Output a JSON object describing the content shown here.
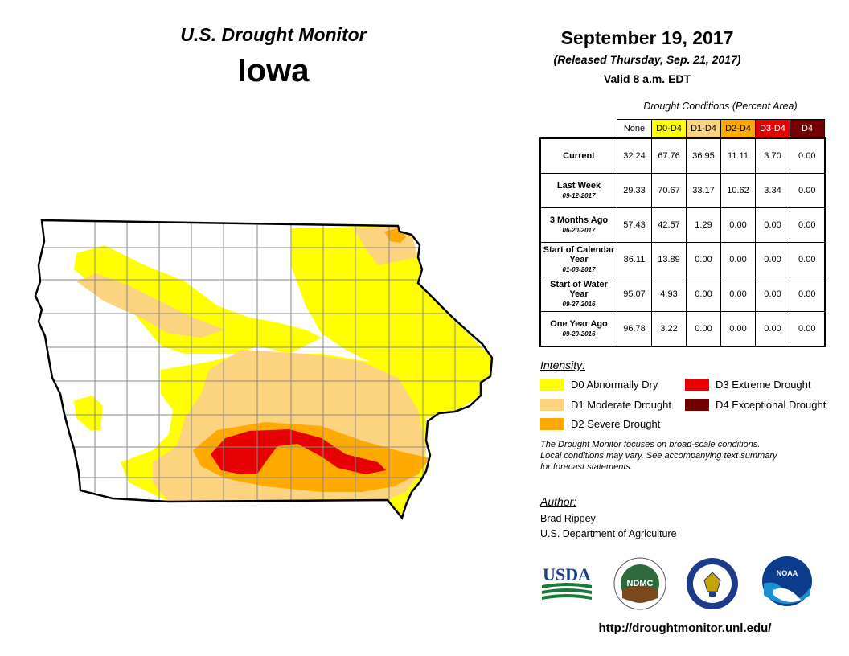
{
  "header": {
    "title": "U.S. Drought Monitor",
    "state": "Iowa",
    "date": "September 19, 2017",
    "released": "(Released Thursday, Sep. 21, 2017)",
    "valid": "Valid 8 a.m. EDT"
  },
  "table": {
    "caption": "Drought Conditions (Percent Area)",
    "columns": [
      {
        "label": "None",
        "color": "#ffffff"
      },
      {
        "label": "D0-D4",
        "color": "#ffff00"
      },
      {
        "label": "D1-D4",
        "color": "#fcd37f"
      },
      {
        "label": "D2-D4",
        "color": "#ffaa00"
      },
      {
        "label": "D3-D4",
        "color": "#e60000"
      },
      {
        "label": "D4",
        "color": "#730000"
      }
    ],
    "rows": [
      {
        "label": "Current",
        "sublabel": "",
        "values": [
          "32.24",
          "67.76",
          "36.95",
          "11.11",
          "3.70",
          "0.00"
        ]
      },
      {
        "label": "Last Week",
        "sublabel": "09-12-2017",
        "values": [
          "29.33",
          "70.67",
          "33.17",
          "10.62",
          "3.34",
          "0.00"
        ]
      },
      {
        "label": "3 Months Ago",
        "sublabel": "06-20-2017",
        "values": [
          "57.43",
          "42.57",
          "1.29",
          "0.00",
          "0.00",
          "0.00"
        ]
      },
      {
        "label": "Start of Calendar Year",
        "sublabel": "01-03-2017",
        "values": [
          "86.11",
          "13.89",
          "0.00",
          "0.00",
          "0.00",
          "0.00"
        ]
      },
      {
        "label": "Start of Water Year",
        "sublabel": "09-27-2016",
        "values": [
          "95.07",
          "4.93",
          "0.00",
          "0.00",
          "0.00",
          "0.00"
        ]
      },
      {
        "label": "One Year Ago",
        "sublabel": "09-20-2016",
        "values": [
          "96.78",
          "3.22",
          "0.00",
          "0.00",
          "0.00",
          "0.00"
        ]
      }
    ]
  },
  "legend": {
    "title": "Intensity:",
    "items": [
      {
        "label": "D0 Abnormally Dry",
        "color": "#ffff00"
      },
      {
        "label": "D1 Moderate Drought",
        "color": "#fcd37f"
      },
      {
        "label": "D2 Severe Drought",
        "color": "#ffaa00"
      },
      {
        "label": "D3 Extreme Drought",
        "color": "#e60000"
      },
      {
        "label": "D4 Exceptional Drought",
        "color": "#730000"
      }
    ]
  },
  "note": {
    "line1": "The Drought Monitor focuses on broad-scale conditions.",
    "line2": "Local conditions may vary. See accompanying text summary",
    "line3": "for forecast statements."
  },
  "author": {
    "label": "Author:",
    "name": "Brad Rippey",
    "org": "U.S. Department of Agriculture"
  },
  "logos": {
    "usda": "USDA",
    "ndmc": "NDMC",
    "noaa": "NOAA"
  },
  "url": "http://droughtmonitor.unl.edu/",
  "map_colors": {
    "d0": "#ffff00",
    "d1": "#fcd37f",
    "d2": "#ffaa00",
    "d3": "#e60000",
    "outline": "#000000",
    "county_lines": "#8a8a8a"
  }
}
